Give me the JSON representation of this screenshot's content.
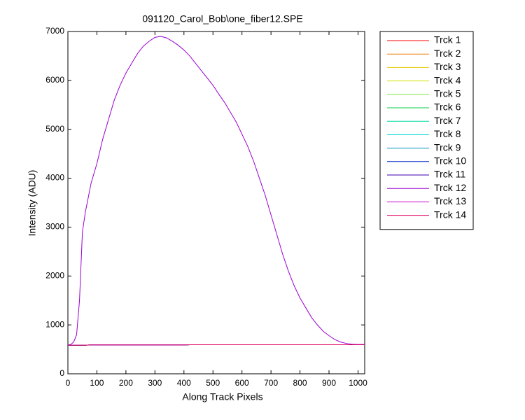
{
  "chart_data": {
    "type": "line",
    "title": "091120_Carol_Bob\\one_fiber12.SPE",
    "xlabel": "Along Track Pixels",
    "ylabel": "Intensity (ADU)",
    "xlim": [
      0,
      1023
    ],
    "ylim": [
      0,
      7000
    ],
    "xticks": [
      0,
      100,
      200,
      300,
      400,
      500,
      600,
      700,
      800,
      900,
      1000
    ],
    "yticks": [
      0,
      1000,
      2000,
      3000,
      4000,
      5000,
      6000,
      7000
    ],
    "x": [
      0,
      10,
      20,
      30,
      40,
      50,
      60,
      80,
      100,
      120,
      140,
      160,
      180,
      200,
      220,
      240,
      260,
      280,
      300,
      320,
      340,
      360,
      380,
      400,
      420,
      440,
      460,
      480,
      500,
      520,
      540,
      560,
      580,
      600,
      620,
      640,
      660,
      680,
      700,
      720,
      740,
      760,
      780,
      800,
      820,
      840,
      860,
      880,
      900,
      920,
      940,
      960,
      980,
      1000,
      1023
    ],
    "series": [
      {
        "name": "Trck 1",
        "color": "#ff0000",
        "values": [
          585,
          585,
          585,
          585,
          585,
          585,
          585,
          590,
          590,
          590,
          590,
          590,
          590,
          590,
          590,
          590,
          590,
          590,
          590,
          590,
          590,
          590,
          590,
          590,
          595,
          595,
          595,
          595,
          595,
          595,
          595,
          595,
          595,
          595,
          595,
          595,
          595,
          595,
          595,
          595,
          595,
          595,
          595,
          595,
          595,
          595,
          595,
          595,
          595,
          595,
          595,
          595,
          595,
          595,
          600
        ]
      },
      {
        "name": "Trck 2",
        "color": "#f07800",
        "values": [
          585,
          585,
          585,
          585,
          585,
          585,
          585,
          590,
          590,
          590,
          590,
          590,
          590,
          590,
          590,
          590,
          590,
          590,
          590,
          590,
          590,
          590,
          590,
          590,
          595,
          595,
          595,
          595,
          595,
          595,
          595,
          595,
          595,
          595,
          595,
          595,
          595,
          595,
          595,
          595,
          595,
          595,
          595,
          595,
          595,
          595,
          595,
          595,
          595,
          595,
          595,
          595,
          595,
          595,
          600
        ]
      },
      {
        "name": "Trck 3",
        "color": "#e8c800",
        "values": [
          585,
          585,
          585,
          585,
          585,
          585,
          585,
          590,
          590,
          590,
          590,
          590,
          590,
          590,
          590,
          590,
          590,
          590,
          590,
          590,
          590,
          590,
          590,
          590,
          595,
          595,
          595,
          595,
          595,
          595,
          595,
          595,
          595,
          595,
          595,
          595,
          595,
          595,
          595,
          595,
          595,
          595,
          595,
          595,
          595,
          595,
          595,
          595,
          595,
          595,
          595,
          595,
          595,
          595,
          600
        ]
      },
      {
        "name": "Trck 4",
        "color": "#d0e000",
        "values": [
          585,
          585,
          585,
          585,
          585,
          585,
          585,
          590,
          590,
          590,
          590,
          590,
          590,
          590,
          590,
          590,
          590,
          590,
          590,
          590,
          590,
          590,
          590,
          590,
          595,
          595,
          595,
          595,
          595,
          595,
          595,
          595,
          595,
          595,
          595,
          595,
          595,
          595,
          595,
          595,
          595,
          595,
          595,
          595,
          595,
          595,
          595,
          595,
          595,
          595,
          595,
          595,
          595,
          595,
          600
        ]
      },
      {
        "name": "Trck 5",
        "color": "#80e040",
        "values": [
          585,
          585,
          585,
          585,
          585,
          585,
          585,
          590,
          590,
          590,
          590,
          590,
          590,
          590,
          590,
          590,
          590,
          590,
          590,
          590,
          590,
          590,
          590,
          590,
          595,
          595,
          595,
          595,
          595,
          595,
          595,
          595,
          595,
          595,
          595,
          595,
          595,
          595,
          595,
          595,
          595,
          595,
          595,
          595,
          595,
          595,
          595,
          595,
          595,
          595,
          595,
          595,
          595,
          595,
          600
        ]
      },
      {
        "name": "Trck 6",
        "color": "#00d040",
        "values": [
          585,
          585,
          585,
          585,
          585,
          585,
          585,
          590,
          590,
          590,
          590,
          590,
          590,
          590,
          590,
          590,
          590,
          590,
          590,
          590,
          590,
          590,
          590,
          590,
          595,
          595,
          595,
          595,
          595,
          595,
          595,
          595,
          595,
          595,
          595,
          595,
          595,
          595,
          595,
          595,
          595,
          595,
          595,
          595,
          595,
          595,
          595,
          595,
          595,
          595,
          595,
          595,
          595,
          595,
          600
        ]
      },
      {
        "name": "Trck 7",
        "color": "#00d8a0",
        "values": [
          585,
          585,
          585,
          585,
          585,
          585,
          585,
          590,
          590,
          590,
          590,
          590,
          590,
          590,
          590,
          590,
          590,
          590,
          590,
          590,
          590,
          590,
          590,
          590,
          595,
          595,
          595,
          595,
          595,
          595,
          595,
          595,
          595,
          595,
          595,
          595,
          595,
          595,
          595,
          595,
          595,
          595,
          595,
          595,
          595,
          595,
          595,
          595,
          595,
          595,
          595,
          595,
          595,
          595,
          600
        ]
      },
      {
        "name": "Trck 8",
        "color": "#00d8d0",
        "values": [
          585,
          585,
          585,
          585,
          585,
          585,
          585,
          590,
          590,
          590,
          590,
          590,
          590,
          590,
          590,
          590,
          590,
          590,
          590,
          590,
          590,
          590,
          590,
          590,
          595,
          595,
          595,
          595,
          595,
          595,
          595,
          595,
          595,
          595,
          595,
          595,
          595,
          595,
          595,
          595,
          595,
          595,
          595,
          595,
          595,
          595,
          595,
          595,
          595,
          595,
          595,
          595,
          595,
          595,
          600
        ]
      },
      {
        "name": "Trck 9",
        "color": "#0090c0",
        "values": [
          585,
          585,
          585,
          585,
          585,
          585,
          585,
          590,
          590,
          590,
          590,
          590,
          590,
          590,
          590,
          590,
          590,
          590,
          590,
          590,
          590,
          590,
          590,
          590,
          595,
          595,
          595,
          595,
          595,
          595,
          595,
          595,
          595,
          595,
          595,
          595,
          595,
          595,
          595,
          595,
          595,
          595,
          595,
          595,
          595,
          595,
          595,
          595,
          595,
          595,
          595,
          595,
          595,
          595,
          600
        ]
      },
      {
        "name": "Trck 10",
        "color": "#0020c0",
        "values": [
          585,
          585,
          585,
          585,
          585,
          585,
          585,
          590,
          590,
          590,
          590,
          590,
          590,
          590,
          590,
          590,
          590,
          590,
          590,
          590,
          590,
          590,
          590,
          590,
          595,
          595,
          595,
          595,
          595,
          595,
          595,
          595,
          595,
          595,
          595,
          595,
          595,
          595,
          595,
          595,
          595,
          595,
          595,
          595,
          595,
          595,
          595,
          595,
          595,
          595,
          595,
          595,
          595,
          595,
          600
        ]
      },
      {
        "name": "Trck 11",
        "color": "#4000b0",
        "values": [
          585,
          585,
          585,
          585,
          585,
          585,
          585,
          590,
          590,
          590,
          590,
          590,
          590,
          590,
          590,
          590,
          590,
          590,
          590,
          590,
          590,
          590,
          590,
          590,
          595,
          595,
          595,
          595,
          595,
          595,
          595,
          595,
          595,
          595,
          595,
          595,
          595,
          595,
          595,
          595,
          595,
          595,
          595,
          595,
          595,
          595,
          595,
          595,
          595,
          595,
          595,
          595,
          595,
          595,
          600
        ]
      },
      {
        "name": "Trck 12",
        "color": "#9a00d0",
        "values": [
          590,
          600,
          650,
          800,
          1500,
          2900,
          3300,
          3900,
          4300,
          4800,
          5200,
          5600,
          5900,
          6150,
          6350,
          6550,
          6700,
          6800,
          6880,
          6900,
          6870,
          6800,
          6720,
          6620,
          6500,
          6350,
          6200,
          6050,
          5900,
          5720,
          5550,
          5350,
          5150,
          4900,
          4650,
          4350,
          4000,
          3650,
          3250,
          2850,
          2450,
          2100,
          1800,
          1550,
          1350,
          1150,
          1000,
          870,
          780,
          700,
          650,
          620,
          605,
          600,
          600
        ]
      },
      {
        "name": "Trck 13",
        "color": "#d000d0",
        "values": [
          585,
          585,
          585,
          585,
          585,
          585,
          585,
          590,
          590,
          590,
          590,
          590,
          590,
          590,
          590,
          590,
          590,
          590,
          590,
          590,
          590,
          590,
          590,
          590,
          595,
          595,
          595,
          595,
          595,
          595,
          595,
          595,
          595,
          595,
          595,
          595,
          595,
          595,
          595,
          595,
          595,
          595,
          595,
          595,
          595,
          595,
          595,
          595,
          595,
          595,
          595,
          595,
          595,
          595,
          600
        ]
      },
      {
        "name": "Trck 14",
        "color": "#e00060",
        "values": [
          585,
          585,
          585,
          585,
          585,
          585,
          585,
          590,
          590,
          590,
          590,
          590,
          590,
          590,
          590,
          590,
          590,
          590,
          590,
          590,
          590,
          590,
          590,
          590,
          595,
          595,
          595,
          595,
          595,
          595,
          595,
          595,
          595,
          595,
          595,
          595,
          595,
          595,
          595,
          595,
          595,
          595,
          595,
          595,
          595,
          595,
          595,
          595,
          595,
          595,
          595,
          595,
          595,
          595,
          600
        ]
      }
    ]
  }
}
